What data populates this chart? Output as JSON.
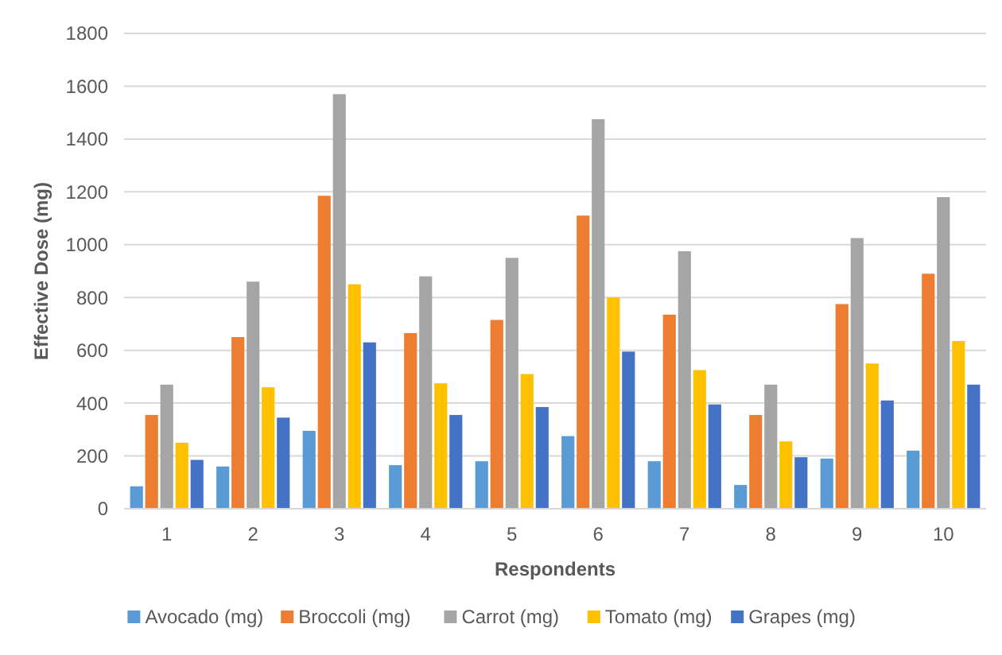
{
  "chart_data": {
    "type": "bar",
    "xlabel": "Respondents",
    "ylabel": "Effective Dose (mg)",
    "categories": [
      "1",
      "2",
      "3",
      "4",
      "5",
      "6",
      "7",
      "8",
      "9",
      "10"
    ],
    "series": [
      {
        "name": "Avocado (mg)",
        "color": "#5b9bd5",
        "values": [
          85,
          160,
          295,
          165,
          180,
          275,
          180,
          90,
          190,
          220
        ]
      },
      {
        "name": "Broccoli (mg)",
        "color": "#ed7d31",
        "values": [
          355,
          650,
          1185,
          665,
          715,
          1110,
          735,
          355,
          775,
          890
        ]
      },
      {
        "name": "Carrot (mg)",
        "color": "#a5a5a5",
        "values": [
          470,
          860,
          1570,
          880,
          950,
          1475,
          975,
          470,
          1025,
          1180
        ]
      },
      {
        "name": "Tomato (mg)",
        "color": "#ffc000",
        "values": [
          250,
          460,
          850,
          475,
          510,
          800,
          525,
          255,
          550,
          635
        ]
      },
      {
        "name": "Grapes (mg)",
        "color": "#4472c4",
        "values": [
          185,
          345,
          630,
          355,
          385,
          595,
          395,
          195,
          410,
          470
        ]
      }
    ],
    "ylim": [
      0,
      1800
    ],
    "yticks": [
      0,
      200,
      400,
      600,
      800,
      1000,
      1200,
      1400,
      1600,
      1800
    ],
    "grid": "y",
    "legend": "bottom"
  }
}
